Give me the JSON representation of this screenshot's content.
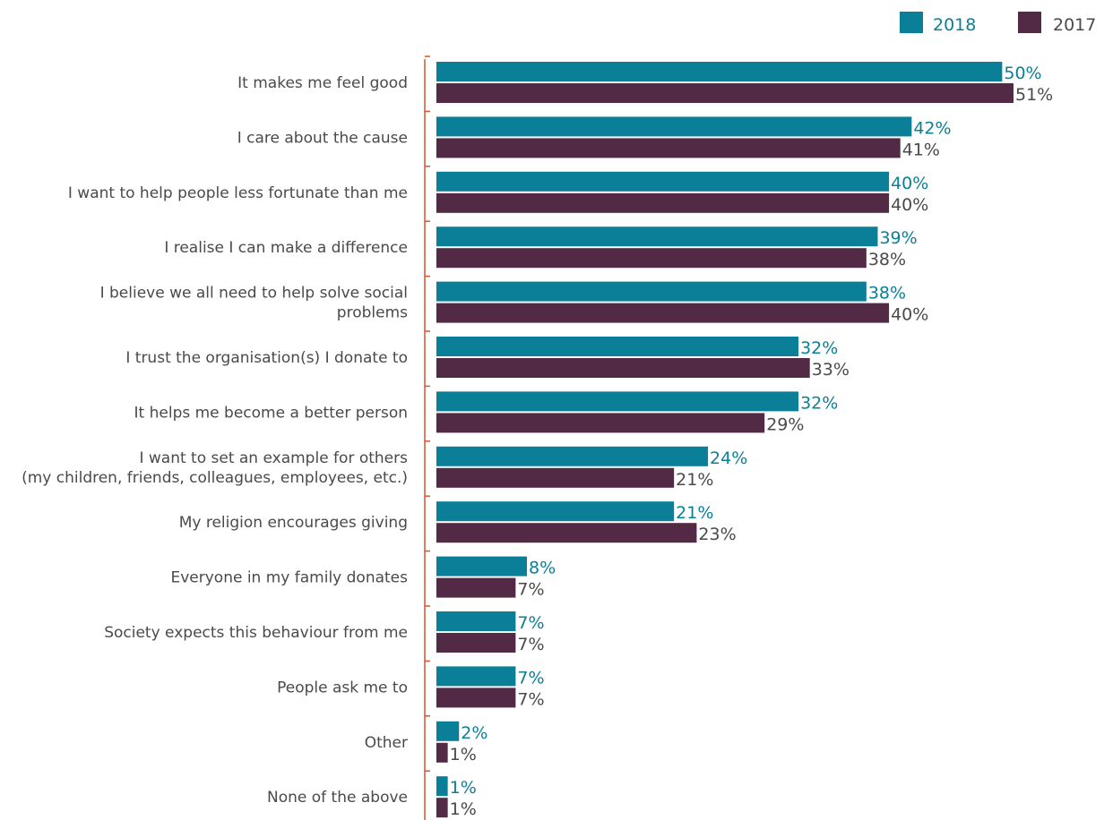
{
  "chart_data": {
    "type": "bar",
    "orientation": "horizontal",
    "title": "",
    "xlabel": "",
    "ylabel": "",
    "xlim": [
      0,
      51
    ],
    "grid": false,
    "legend_position": "top-right",
    "categories": [
      [
        "It makes me feel good"
      ],
      [
        "I care about the cause"
      ],
      [
        "I want to help people less fortunate than me"
      ],
      [
        "I realise I can make a difference"
      ],
      [
        "I believe we all need to help solve social",
        "problems"
      ],
      [
        "I trust the organisation(s) I donate to"
      ],
      [
        "It helps me become a better person"
      ],
      [
        "I want to set an example for others",
        "(my children, friends, colleagues, employees, etc.)"
      ],
      [
        "My religion encourages giving"
      ],
      [
        "Everyone in my family donates"
      ],
      [
        "Society expects this behaviour from me"
      ],
      [
        "People ask me to"
      ],
      [
        "Other"
      ],
      [
        "None of the above"
      ]
    ],
    "series": [
      {
        "name": "2018",
        "color": "#0a7f97",
        "values": [
          50,
          42,
          40,
          39,
          38,
          32,
          32,
          24,
          21,
          8,
          7,
          7,
          2,
          1
        ],
        "labels": [
          "50%",
          "42%",
          "40%",
          "39%",
          "38%",
          "32%",
          "32%",
          "24%",
          "21%",
          "8%",
          "7%",
          "7%",
          "2%",
          "1%"
        ]
      },
      {
        "name": "2017",
        "color": "#532a45",
        "values": [
          51,
          41,
          40,
          38,
          40,
          33,
          29,
          21,
          23,
          7,
          7,
          7,
          1,
          1
        ],
        "labels": [
          "51%",
          "41%",
          "40%",
          "38%",
          "40%",
          "33%",
          "29%",
          "21%",
          "23%",
          "7%",
          "7%",
          "7%",
          "1%",
          "1%"
        ]
      }
    ],
    "axis_color": "#d9532b",
    "label_color": "#4a4a4a"
  }
}
